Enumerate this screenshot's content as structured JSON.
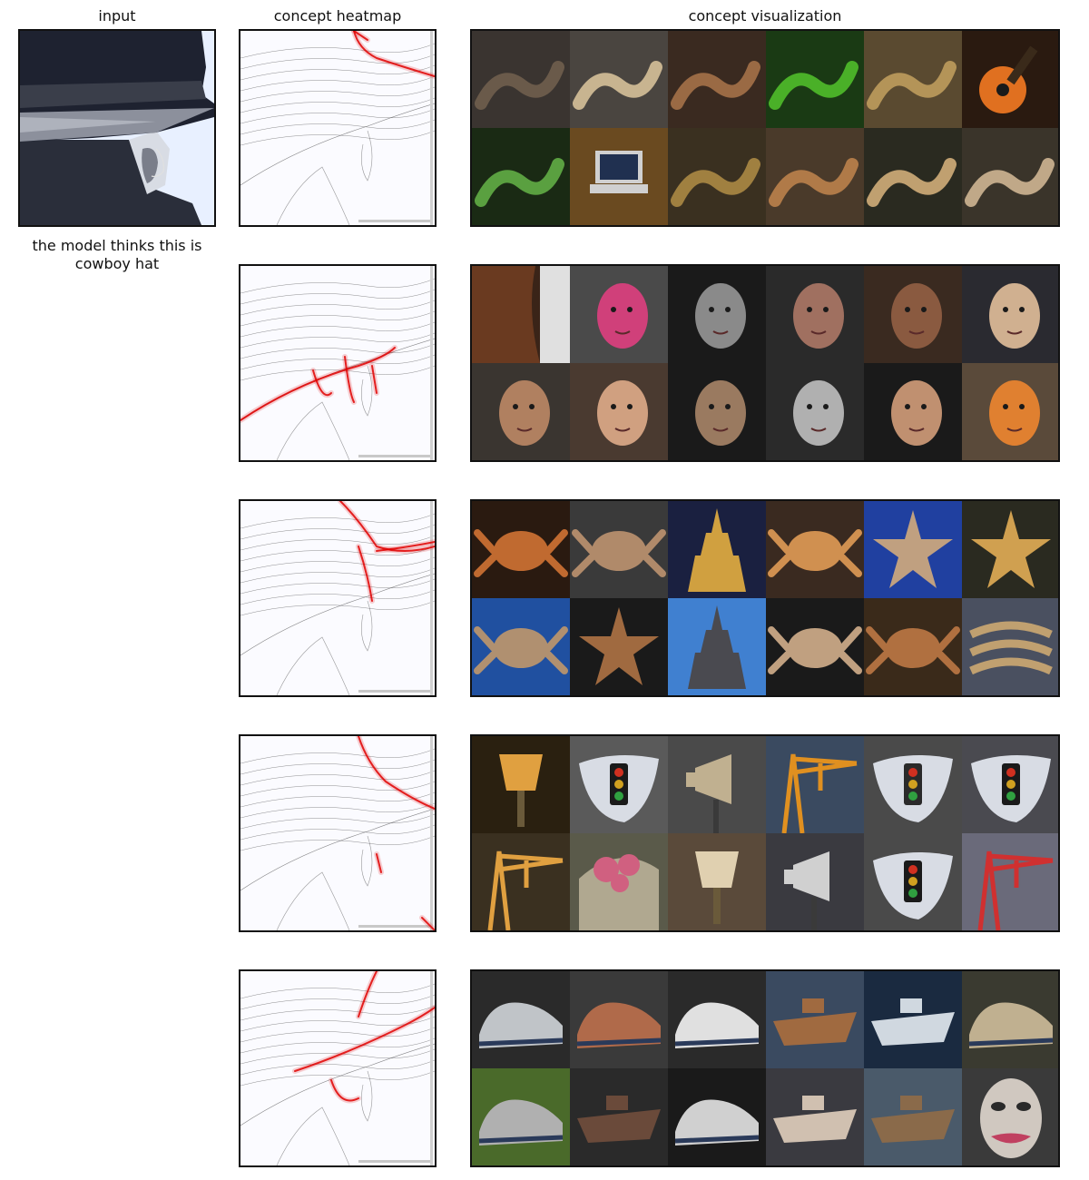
{
  "columns": {
    "input": "input",
    "heatmap": "concept heatmap",
    "visualization": "concept visualization"
  },
  "caption": "the model thinks this is cowboy hat",
  "colors": {
    "heat": "#e00000",
    "edge": "#333333",
    "frame": "#111111"
  },
  "concepts": [
    {
      "heat_region": "hat-top-edge",
      "tiles": [
        {
          "icon": "snake-icon",
          "bg": "#3a3430",
          "fg": "#6a5a4a"
        },
        {
          "icon": "snake-icon",
          "bg": "#4a4540",
          "fg": "#c8b490"
        },
        {
          "icon": "snake-icon",
          "bg": "#3a2a20",
          "fg": "#9a6a44"
        },
        {
          "icon": "snake-icon",
          "bg": "#1a3a14",
          "fg": "#4ab028"
        },
        {
          "icon": "snake-icon",
          "bg": "#5a4a30",
          "fg": "#b49458"
        },
        {
          "icon": "guitar-icon",
          "bg": "#2a1a10",
          "fg": "#e07020"
        },
        {
          "icon": "snake-icon",
          "bg": "#1a2a14",
          "fg": "#5aa040"
        },
        {
          "icon": "laptop-icon",
          "bg": "#6a4a20",
          "fg": "#d0d0d0"
        },
        {
          "icon": "snake-icon",
          "bg": "#3a3020",
          "fg": "#a08040"
        },
        {
          "icon": "snake-icon",
          "bg": "#4a3a2a",
          "fg": "#b07a48"
        },
        {
          "icon": "snake-icon",
          "bg": "#2a2a20",
          "fg": "#c0a070"
        },
        {
          "icon": "snake-icon",
          "bg": "#3a342a",
          "fg": "#c0a888"
        }
      ]
    },
    {
      "heat_region": "ear-and-glasses",
      "tiles": [
        {
          "icon": "hair-icon",
          "bg": "#3a2418",
          "fg": "#6a3a20"
        },
        {
          "icon": "face-icon",
          "bg": "#4a4a4a",
          "fg": "#d0407a"
        },
        {
          "icon": "face-icon",
          "bg": "#1a1a1a",
          "fg": "#8a8a8a"
        },
        {
          "icon": "face-icon",
          "bg": "#2a2a2a",
          "fg": "#a07060"
        },
        {
          "icon": "face-icon",
          "bg": "#3a2a20",
          "fg": "#8a5a40"
        },
        {
          "icon": "face-icon",
          "bg": "#2a2a30",
          "fg": "#d0b090"
        },
        {
          "icon": "face-icon",
          "bg": "#3a3530",
          "fg": "#b08060"
        },
        {
          "icon": "face-icon",
          "bg": "#4a3a30",
          "fg": "#d0a080"
        },
        {
          "icon": "face-icon",
          "bg": "#1a1a1a",
          "fg": "#9a7a60"
        },
        {
          "icon": "face-icon",
          "bg": "#2a2a2a",
          "fg": "#b0b0b0"
        },
        {
          "icon": "face-icon",
          "bg": "#1a1a1a",
          "fg": "#c09070"
        },
        {
          "icon": "face-icon",
          "bg": "#5a4a3a",
          "fg": "#e08030"
        }
      ]
    },
    {
      "heat_region": "hat-brim",
      "tiles": [
        {
          "icon": "crab-icon",
          "bg": "#2a1a10",
          "fg": "#c06a30"
        },
        {
          "icon": "crab-icon",
          "bg": "#3a3a3a",
          "fg": "#b08a6a"
        },
        {
          "icon": "pagoda-icon",
          "bg": "#1a2040",
          "fg": "#d0a040"
        },
        {
          "icon": "crab-icon",
          "bg": "#3a2a20",
          "fg": "#d09050"
        },
        {
          "icon": "starfish-icon",
          "bg": "#2040a0",
          "fg": "#c0a080"
        },
        {
          "icon": "starfish-icon",
          "bg": "#2a2a20",
          "fg": "#d0a050"
        },
        {
          "icon": "crab-icon",
          "bg": "#2050a0",
          "fg": "#b09070"
        },
        {
          "icon": "starfish-icon",
          "bg": "#1a1a1a",
          "fg": "#a06a40"
        },
        {
          "icon": "pagoda-icon",
          "bg": "#4080d0",
          "fg": "#4a4a50"
        },
        {
          "icon": "crab-icon",
          "bg": "#1a1a1a",
          "fg": "#c0a080"
        },
        {
          "icon": "crab-icon",
          "bg": "#3a2a1a",
          "fg": "#b07040"
        },
        {
          "icon": "rope-icon",
          "bg": "#4a5060",
          "fg": "#c0a070"
        }
      ]
    },
    {
      "heat_region": "hat-crown-edge",
      "tiles": [
        {
          "icon": "lamp-icon",
          "bg": "#2a2010",
          "fg": "#e0a040"
        },
        {
          "icon": "traffic-light-icon",
          "bg": "#5a5a5a",
          "fg": "#1a1a1a"
        },
        {
          "icon": "horn-icon",
          "bg": "#4a4a4a",
          "fg": "#c0b090"
        },
        {
          "icon": "crane-icon",
          "bg": "#3a4a60",
          "fg": "#e09020"
        },
        {
          "icon": "traffic-light-icon",
          "bg": "#4a4a4a",
          "fg": "#2a2a2a"
        },
        {
          "icon": "traffic-light-icon",
          "bg": "#4a4a50",
          "fg": "#1a1a1a"
        },
        {
          "icon": "crane-icon",
          "bg": "#3a3020",
          "fg": "#e0a040"
        },
        {
          "icon": "flower-icon",
          "bg": "#5a5a4a",
          "fg": "#d06080"
        },
        {
          "icon": "lamp-icon",
          "bg": "#5a4a3a",
          "fg": "#e0d0b0"
        },
        {
          "icon": "horn-icon",
          "bg": "#3a3a40",
          "fg": "#d0d0d0"
        },
        {
          "icon": "traffic-light-icon",
          "bg": "#4a4a4a",
          "fg": "#1a1a1a"
        },
        {
          "icon": "crane-icon",
          "bg": "#6a6a7a",
          "fg": "#d03030"
        }
      ]
    },
    {
      "heat_region": "hat-band",
      "tiles": [
        {
          "icon": "shoe-icon",
          "bg": "#2a2a2a",
          "fg": "#c0c4c8"
        },
        {
          "icon": "shoe-icon",
          "bg": "#3a3a3a",
          "fg": "#b06a4a"
        },
        {
          "icon": "shoe-icon",
          "bg": "#2a2a2a",
          "fg": "#e0e0e0"
        },
        {
          "icon": "ship-icon",
          "bg": "#3a4a60",
          "fg": "#a06a40"
        },
        {
          "icon": "ship-icon",
          "bg": "#1a2a40",
          "fg": "#d0d8e0"
        },
        {
          "icon": "shoe-icon",
          "bg": "#3a3a30",
          "fg": "#c0b090"
        },
        {
          "icon": "shoe-icon",
          "bg": "#4a6a2a",
          "fg": "#b0b0b0"
        },
        {
          "icon": "ship-icon",
          "bg": "#2a2a2a",
          "fg": "#6a4a3a"
        },
        {
          "icon": "shoe-icon",
          "bg": "#1a1a1a",
          "fg": "#d0d0d0"
        },
        {
          "icon": "ship-icon",
          "bg": "#3a3a40",
          "fg": "#d0c0b0"
        },
        {
          "icon": "ship-icon",
          "bg": "#4a5a6a",
          "fg": "#8a6a4a"
        },
        {
          "icon": "mask-icon",
          "bg": "#3a3a3a",
          "fg": "#d0c8c0"
        }
      ]
    }
  ]
}
